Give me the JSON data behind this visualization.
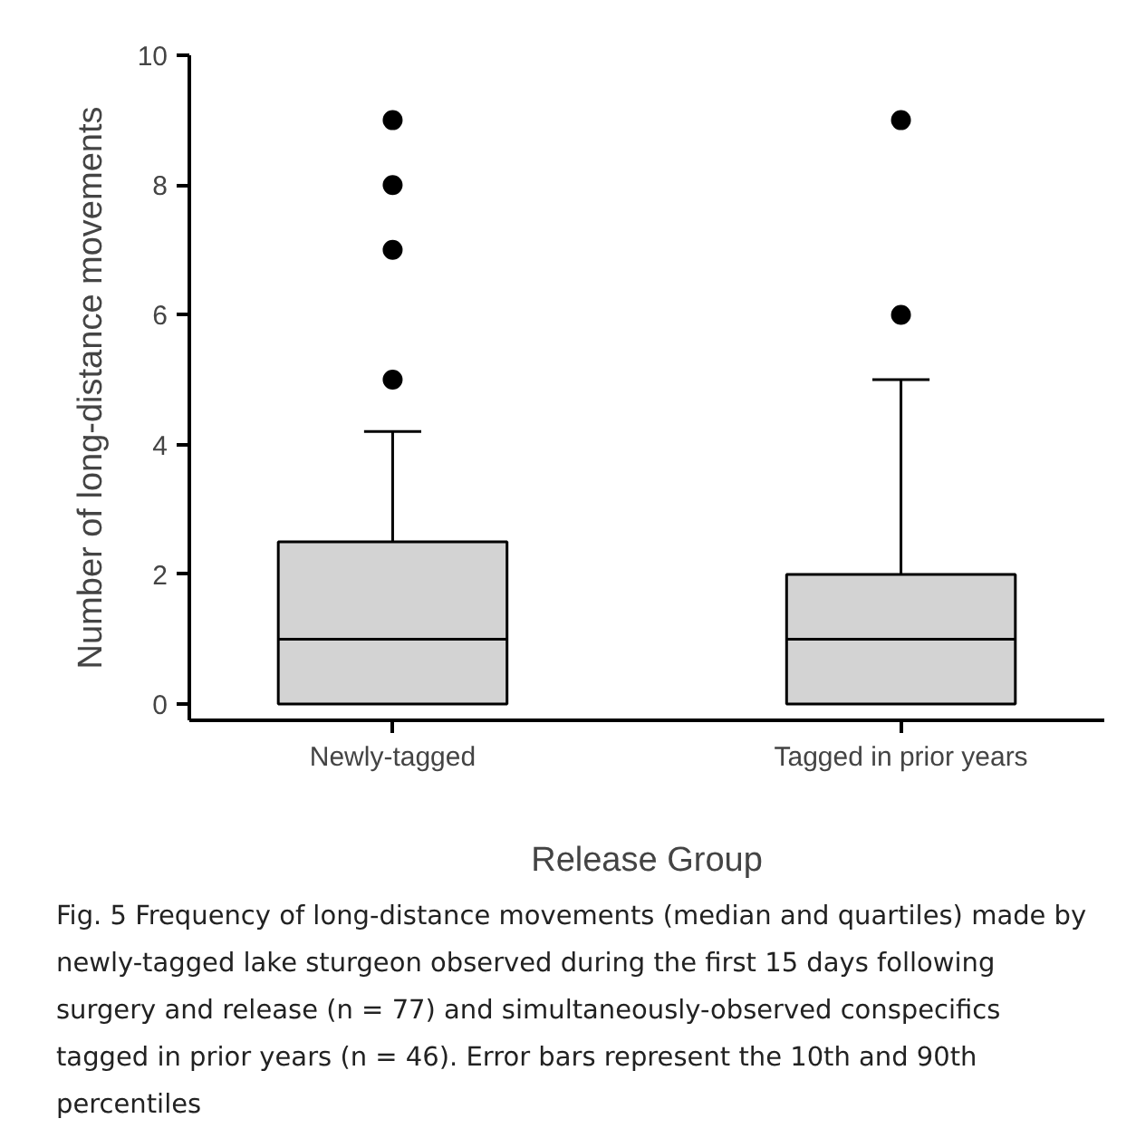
{
  "chart_data": {
    "type": "box",
    "categories": [
      "Newly-tagged",
      "Tagged in prior years"
    ],
    "xlabel": "Release Group",
    "ylabel": "Number of long-distance movements",
    "ylim": [
      -0.25,
      10
    ],
    "yticks": [
      0,
      2,
      4,
      6,
      8,
      10
    ],
    "grid": false,
    "color": "#d3d3d3",
    "boxes": [
      {
        "low": 0,
        "q1": 0,
        "median": 1,
        "q3": 2.5,
        "high": 4.2,
        "outliers": [
          5,
          7,
          8,
          9
        ]
      },
      {
        "low": 0,
        "q1": 0,
        "median": 1,
        "q3": 2,
        "high": 5,
        "outliers": [
          6,
          9
        ]
      }
    ],
    "annotations": [
      "Fig. 5  Frequency of long-distance movements (median and quartiles) made by newly-tagged lake sturgeon observed during the first 15 days following surgery and release (n = 77) and simultaneously-observed conspecifics tagged in prior years (n = 46). Error bars represent the 10th and 90th percentiles"
    ]
  }
}
